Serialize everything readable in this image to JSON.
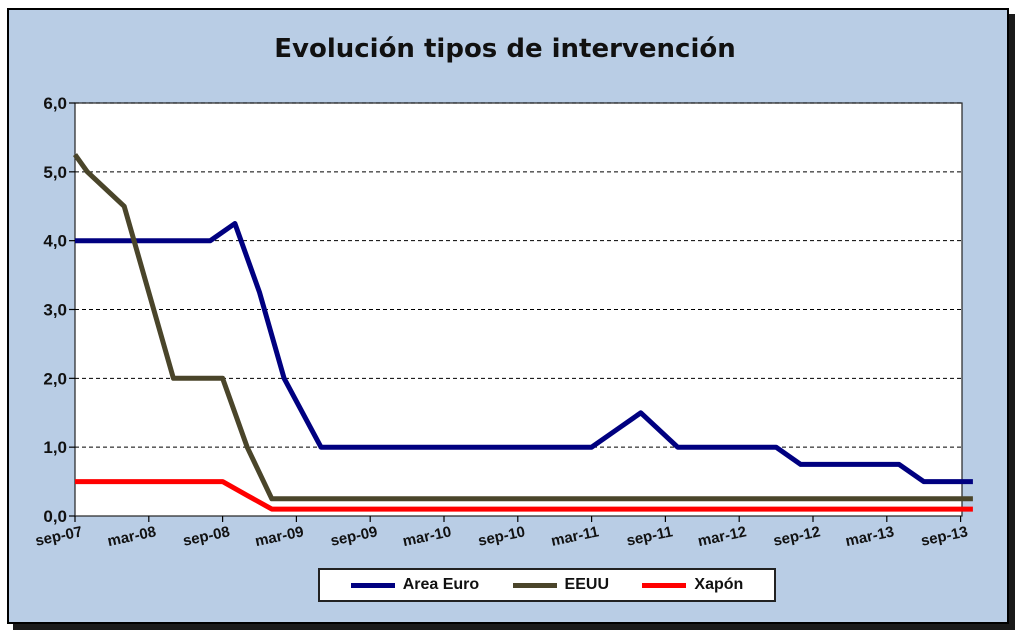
{
  "chart_data": {
    "type": "line",
    "title": "Evolución tipos de intervención",
    "xlabel": "",
    "ylabel": "",
    "ylim": [
      0,
      6
    ],
    "yticks": [
      "0,0",
      "1,0",
      "2,0",
      "3,0",
      "4,0",
      "5,0",
      "6,0"
    ],
    "x_tick_labels": [
      "sep-07",
      "mar-08",
      "sep-08",
      "mar-09",
      "sep-09",
      "mar-10",
      "sep-10",
      "mar-11",
      "sep-11",
      "mar-12",
      "sep-12",
      "mar-13",
      "sep-13"
    ],
    "x_months_span": [
      "sep-07",
      "sep-13"
    ],
    "grid": "horizontal-dashed",
    "legend_position": "bottom",
    "series": [
      {
        "name": "Area Euro",
        "color": "#000080",
        "points": [
          [
            "sep-07",
            4.0
          ],
          [
            "aug-08",
            4.0
          ],
          [
            "oct-08",
            4.25
          ],
          [
            "dec-08",
            3.25
          ],
          [
            "feb-09",
            2.0
          ],
          [
            "may-09",
            1.0
          ],
          [
            "mar-11",
            1.0
          ],
          [
            "may-11",
            1.25
          ],
          [
            "jul-11",
            1.5
          ],
          [
            "oct-11",
            1.0
          ],
          [
            "jun-12",
            1.0
          ],
          [
            "aug-12",
            0.75
          ],
          [
            "apr-13",
            0.75
          ],
          [
            "jun-13",
            0.5
          ],
          [
            "oct-13",
            0.5
          ]
        ]
      },
      {
        "name": "EEUU",
        "color": "#4a452a",
        "points": [
          [
            "sep-07",
            5.25
          ],
          [
            "oct-07",
            5.0
          ],
          [
            "jan-08",
            4.5
          ],
          [
            "mar-08",
            3.25
          ],
          [
            "may-08",
            2.0
          ],
          [
            "sep-08",
            2.0
          ],
          [
            "nov-08",
            1.0
          ],
          [
            "jan-09",
            0.25
          ],
          [
            "oct-13",
            0.25
          ]
        ]
      },
      {
        "name": "Xapón",
        "color": "#ff0000",
        "points": [
          [
            "sep-07",
            0.5
          ],
          [
            "sep-08",
            0.5
          ],
          [
            "nov-08",
            0.3
          ],
          [
            "jan-09",
            0.1
          ],
          [
            "oct-13",
            0.1
          ]
        ]
      }
    ]
  }
}
